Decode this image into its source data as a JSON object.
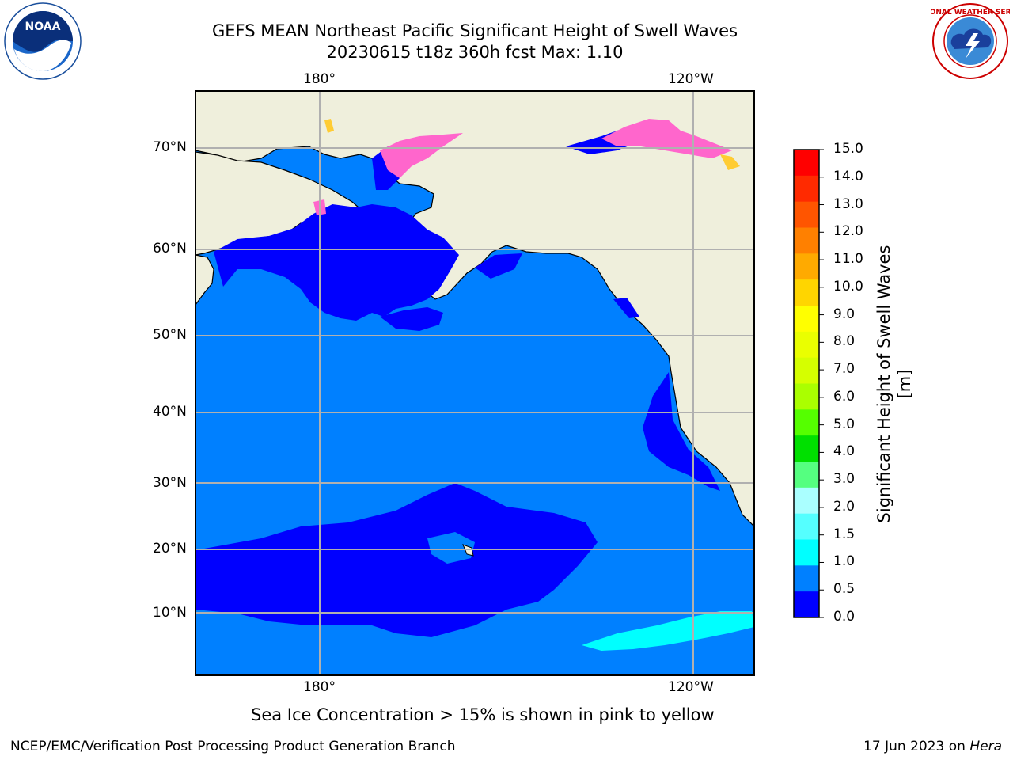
{
  "title": {
    "line1": "GEFS MEAN Northeast Pacific Significant Height of Swell Waves",
    "line2": "20230615 t18z 360h fcst   Max: 1.10"
  },
  "logos": {
    "left": {
      "text": "NOAA",
      "ring_text": "NATIONAL OCEANIC AND ATMOSPHERIC ADMINISTRATION · U.S. DEPARTMENT OF COMMERCE"
    },
    "right": {
      "ring_text": "NATIONAL WEATHER SERVICE"
    }
  },
  "map": {
    "lon_top": [
      "180°",
      "120°W"
    ],
    "lon_bottom": [
      "180°",
      "120°W"
    ],
    "lat_labels": [
      "70°N",
      "60°N",
      "50°N",
      "40°N",
      "30°N",
      "20°N",
      "10°N"
    ],
    "colors": {
      "land": "#efefdc",
      "ocean_low": "#0000ff",
      "ocean_mid": "#0080ff",
      "swell_high": "#00ffff",
      "ice_pink": "#ff66cc",
      "ice_yellow": "#ffcc33",
      "grid": "#b0b0b0"
    }
  },
  "colorbar": {
    "label": "Significant Height of Swell Waves [m]",
    "ticks": [
      "15.0",
      "14.0",
      "13.0",
      "12.0",
      "11.0",
      "10.0",
      "9.0",
      "8.0",
      "7.0",
      "6.0",
      "5.0",
      "4.0",
      "3.0",
      "2.0",
      "1.5",
      "1.0",
      "0.5",
      "0.0"
    ],
    "colors_top_to_bottom": [
      "#ff0000",
      "#ff2a00",
      "#ff5500",
      "#ff8000",
      "#ffaa00",
      "#ffd500",
      "#ffff00",
      "#eaff00",
      "#d5ff00",
      "#aaff00",
      "#55ff00",
      "#00e000",
      "#55ff80",
      "#aaffff",
      "#55ffff",
      "#00ffff",
      "#0080ff",
      "#0000ff"
    ]
  },
  "notes": {
    "ice": "Sea Ice Concentration > 15% is shown in pink to yellow"
  },
  "footer": {
    "left": "NCEP/EMC/Verification Post Processing Product Generation Branch",
    "right_prefix": "17 Jun 2023 on ",
    "right_host": "Hera"
  }
}
